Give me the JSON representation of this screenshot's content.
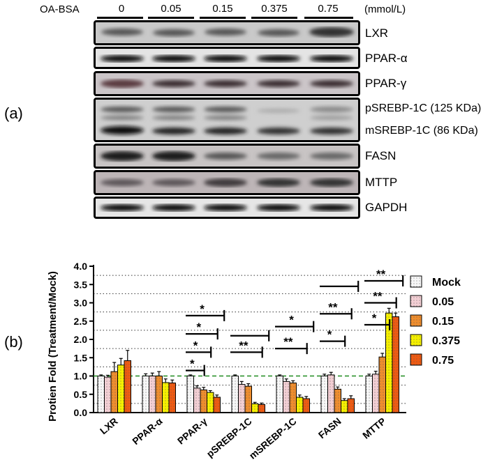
{
  "panel_a_label": "(a)",
  "panel_b_label": "(b)",
  "treatment_label": "OA-BSA",
  "unit_label": "(mmol/L)",
  "concentrations": [
    "0",
    "0.05",
    "0.15",
    "0.375",
    "0.75"
  ],
  "blots": [
    {
      "label": "LXR"
    },
    {
      "label": "PPAR-α"
    },
    {
      "label": "PPAR-γ"
    },
    {
      "label": "pSREBP-1C (125 KDa)",
      "label2": "mSREBP-1C (86 KDa)"
    },
    {
      "label": "FASN"
    },
    {
      "label": "MTTP"
    },
    {
      "label": "GAPDH"
    }
  ],
  "chart_data": {
    "type": "bar",
    "ylabel": "Protien Fold (Treatment/Mock)",
    "xlabel": "",
    "ylim": [
      0,
      4.0
    ],
    "yticks": [
      "0.0",
      "0.5",
      "1.0",
      "1.5",
      "2.0",
      "2.5",
      "3.0",
      "3.5",
      "4.0"
    ],
    "reference_line": 1.0,
    "categories": [
      "LXR",
      "PPAR-α",
      "PPAR-γ",
      "pSREBP-1C",
      "mSREBP-1C",
      "FASN",
      "MTTP"
    ],
    "series": [
      {
        "name": "Mock",
        "values": [
          1.0,
          1.0,
          1.0,
          1.0,
          1.0,
          1.0,
          1.0
        ],
        "errors": [
          0.03,
          0.06,
          0.03,
          0.03,
          0.03,
          0.05,
          0.05
        ],
        "color": "#f7f7f7"
      },
      {
        "name": "0.05",
        "values": [
          0.97,
          1.0,
          0.67,
          0.77,
          0.85,
          1.03,
          1.05
        ],
        "errors": [
          0.05,
          0.08,
          0.06,
          0.08,
          0.07,
          0.07,
          0.08
        ],
        "color": "#f3cfd4"
      },
      {
        "name": "0.15",
        "values": [
          1.12,
          1.0,
          0.62,
          0.72,
          0.81,
          0.64,
          1.52
        ],
        "errors": [
          0.25,
          0.12,
          0.07,
          0.07,
          0.06,
          0.06,
          0.1
        ],
        "color": "#ee8d2e"
      },
      {
        "name": "0.375",
        "values": [
          1.3,
          0.82,
          0.55,
          0.24,
          0.42,
          0.33,
          2.72
        ],
        "errors": [
          0.18,
          0.1,
          0.05,
          0.04,
          0.06,
          0.05,
          0.13
        ],
        "color": "#f5f000"
      },
      {
        "name": "0.75",
        "values": [
          1.42,
          0.81,
          0.42,
          0.22,
          0.38,
          0.38,
          2.62
        ],
        "errors": [
          0.28,
          0.08,
          0.06,
          0.04,
          0.06,
          0.08,
          0.1
        ],
        "color": "#ee5a12"
      }
    ],
    "grid": "dotted-horizontal",
    "legend_position": "right",
    "significance": [
      {
        "category": "PPAR-γ",
        "to_series": "0.05",
        "mark": "*"
      },
      {
        "category": "PPAR-γ",
        "to_series": "0.15",
        "mark": "*"
      },
      {
        "category": "PPAR-γ",
        "to_series": "0.375",
        "mark": "*"
      },
      {
        "category": "PPAR-γ",
        "to_series": "0.75",
        "mark": "*"
      },
      {
        "category": "pSREBP-1C",
        "to_series": "0.375",
        "mark": "**"
      },
      {
        "category": "pSREBP-1C",
        "to_series": "0.75",
        "mark": ""
      },
      {
        "category": "mSREBP-1C",
        "to_series": "0.375",
        "mark": "**"
      },
      {
        "category": "mSREBP-1C",
        "to_series": "0.75",
        "mark": "*"
      },
      {
        "category": "FASN",
        "to_series": "0.15",
        "mark": "*"
      },
      {
        "category": "FASN",
        "to_series": "0.375",
        "mark": "**"
      },
      {
        "category": "FASN",
        "to_series": "0.75",
        "mark": ""
      },
      {
        "category": "MTTP",
        "to_series": "0.15",
        "mark": "*"
      },
      {
        "category": "MTTP",
        "to_series": "0.375",
        "mark": "**"
      },
      {
        "category": "MTTP",
        "to_series": "0.75",
        "mark": "**"
      }
    ]
  }
}
